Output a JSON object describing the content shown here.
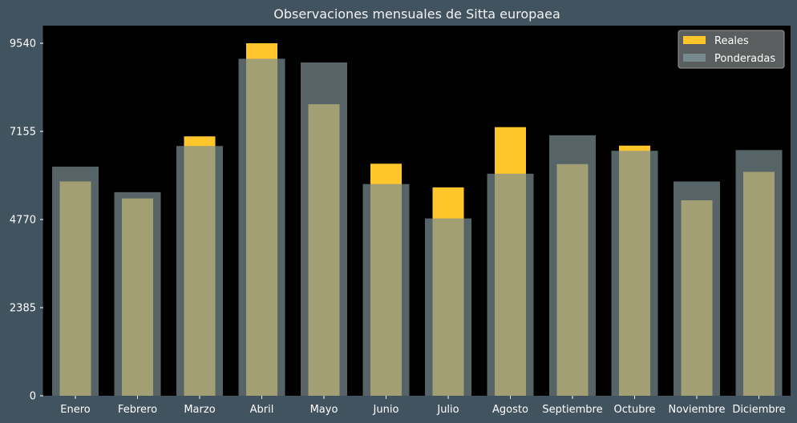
{
  "chart_data": {
    "type": "bar",
    "title": "Observaciones mensuales de Sitta europaea",
    "xlabel": "",
    "ylabel": "",
    "categories": [
      "Enero",
      "Febrero",
      "Marzo",
      "Abril",
      "Mayo",
      "Junio",
      "Julio",
      "Agosto",
      "Septiembre",
      "Octubre",
      "Noviembre",
      "Diciembre"
    ],
    "series": [
      {
        "name": "Reales",
        "values": [
          5800,
          5340,
          7020,
          9540,
          7890,
          6280,
          5640,
          7270,
          6270,
          6770,
          5290,
          6060
        ],
        "color": "#ffc62b"
      },
      {
        "name": "Ponderadas",
        "values": [
          6200,
          5510,
          6760,
          9120,
          9020,
          5730,
          4800,
          6010,
          7050,
          6630,
          5800,
          6650
        ],
        "color": "#7a8f94"
      }
    ],
    "yticks": [
      "0",
      "2385",
      "4770",
      "7155",
      "9540"
    ],
    "ylim": [
      0,
      9540
    ],
    "grid": false,
    "legend_position": "top-right",
    "plot_background": "#000000",
    "page_background": "#41535f",
    "text_color": "#ffffff"
  }
}
